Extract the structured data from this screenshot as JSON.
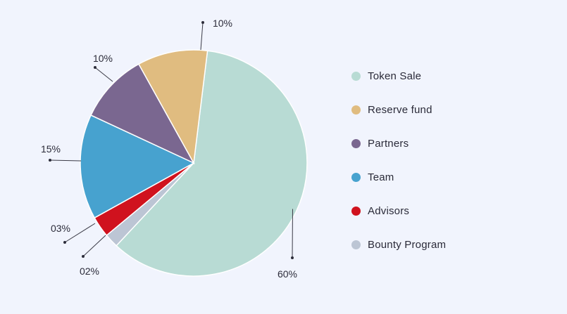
{
  "chart_data": {
    "type": "pie",
    "title": "",
    "slices": [
      {
        "name": "Token Sale",
        "value": 60,
        "label": "60%",
        "color": "#b8dbd4"
      },
      {
        "name": "Bounty Program",
        "value": 2,
        "label": "02%",
        "color": "#bcc5d4"
      },
      {
        "name": "Advisors",
        "value": 3,
        "label": "03%",
        "color": "#d0121e"
      },
      {
        "name": "Team",
        "value": 15,
        "label": "15%",
        "color": "#47a2cf"
      },
      {
        "name": "Partners",
        "value": 10,
        "label": "10%",
        "color": "#7a6790"
      },
      {
        "name": "Reserve fund",
        "value": 10,
        "label": "10%",
        "color": "#e0bc80"
      }
    ],
    "legend_position": "right",
    "legend": [
      {
        "name": "Token Sale",
        "color": "#b8dbd4"
      },
      {
        "name": "Reserve fund",
        "color": "#e0bc80"
      },
      {
        "name": "Partners",
        "color": "#7a6790"
      },
      {
        "name": "Team",
        "color": "#47a2cf"
      },
      {
        "name": "Advisors",
        "color": "#d0121e"
      },
      {
        "name": "Bounty Program",
        "color": "#bcc5d4"
      }
    ]
  }
}
